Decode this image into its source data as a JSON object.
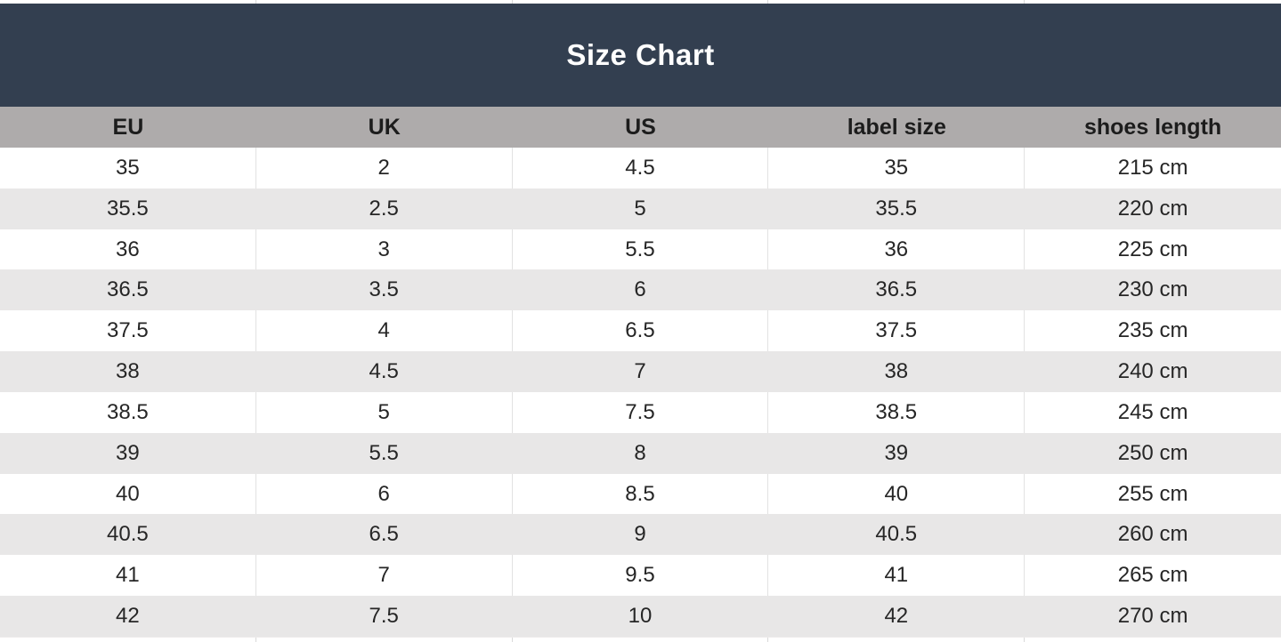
{
  "title": "Size Chart",
  "colors": {
    "title_bar_bg": "#333f50",
    "title_text": "#ffffff",
    "header_row_bg": "#aeabab",
    "alt_row_bg": "#e8e7e7",
    "grid_line": "#e2e2e2",
    "body_text": "#262626"
  },
  "chart_data": {
    "type": "table",
    "title": "Size Chart",
    "columns": [
      "EU",
      "UK",
      "US",
      "label size",
      "shoes length"
    ],
    "rows": [
      [
        "35",
        "2",
        "4.5",
        "35",
        "215 cm"
      ],
      [
        "35.5",
        "2.5",
        "5",
        "35.5",
        "220 cm"
      ],
      [
        "36",
        "3",
        "5.5",
        "36",
        "225 cm"
      ],
      [
        "36.5",
        "3.5",
        "6",
        "36.5",
        "230 cm"
      ],
      [
        "37.5",
        "4",
        "6.5",
        "37.5",
        "235 cm"
      ],
      [
        "38",
        "4.5",
        "7",
        "38",
        "240 cm"
      ],
      [
        "38.5",
        "5",
        "7.5",
        "38.5",
        "245 cm"
      ],
      [
        "39",
        "5.5",
        "8",
        "39",
        "250 cm"
      ],
      [
        "40",
        "6",
        "8.5",
        "40",
        "255 cm"
      ],
      [
        "40.5",
        "6.5",
        "9",
        "40.5",
        "260 cm"
      ],
      [
        "41",
        "7",
        "9.5",
        "41",
        "265 cm"
      ],
      [
        "42",
        "7.5",
        "10",
        "42",
        "270 cm"
      ]
    ]
  }
}
